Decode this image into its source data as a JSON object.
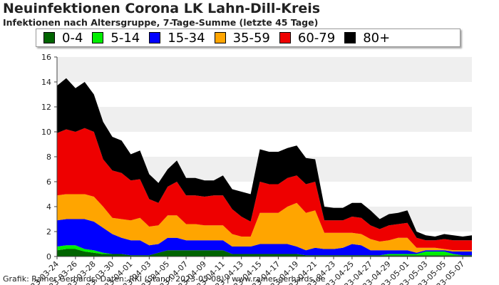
{
  "chart_data": {
    "type": "area",
    "title": "Neuinfektionen Corona LK Lahn-Dill-Kreis",
    "subtitle": "Infektionen nach Altersgruppe, 7-Tage-Summe (letzte 45 Tage)",
    "xlabel": "",
    "ylabel": "",
    "stacked": true,
    "ylim": [
      0,
      16
    ],
    "yticks": [
      "0",
      "2",
      "4",
      "6",
      "8",
      "10",
      "12",
      "14",
      "16"
    ],
    "grid": "alternating horizontal bands",
    "legend_position": "top",
    "x": [
      "2023-03-24",
      "2023-03-25",
      "2023-03-26",
      "2023-03-27",
      "2023-03-28",
      "2023-03-29",
      "2023-03-30",
      "2023-03-31",
      "2023-04-01",
      "2023-04-02",
      "2023-04-03",
      "2023-04-04",
      "2023-04-05",
      "2023-04-06",
      "2023-04-07",
      "2023-04-08",
      "2023-04-09",
      "2023-04-10",
      "2023-04-11",
      "2023-04-12",
      "2023-04-13",
      "2023-04-14",
      "2023-04-15",
      "2023-04-16",
      "2023-04-17",
      "2023-04-18",
      "2023-04-19",
      "2023-04-20",
      "2023-04-21",
      "2023-04-22",
      "2023-04-23",
      "2023-04-24",
      "2023-04-25",
      "2023-04-26",
      "2023-04-27",
      "2023-04-28",
      "2023-04-29",
      "2023-04-30",
      "2023-05-01",
      "2023-05-02",
      "2023-05-03",
      "2023-05-04",
      "2023-05-05",
      "2023-05-06",
      "2023-05-07",
      "2023-05-08"
    ],
    "x_tick_labels": [
      "2023-03-24",
      "2023-03-26",
      "2023-03-28",
      "2023-03-30",
      "2023-04-01",
      "2023-04-03",
      "2023-04-05",
      "2023-04-07",
      "2023-04-09",
      "2023-04-11",
      "2023-04-13",
      "2023-04-15",
      "2023-04-17",
      "2023-04-19",
      "2023-04-21",
      "2023-04-23",
      "2023-04-25",
      "2023-04-27",
      "2023-04-29",
      "2023-05-01",
      "2023-05-03",
      "2023-05-05",
      "2023-05-07"
    ],
    "series": [
      {
        "name": "0-4",
        "color": "#006400",
        "values": [
          0.5,
          0.6,
          0.6,
          0.4,
          0.3,
          0.2,
          0.2,
          0.2,
          0.1,
          0.1,
          0.1,
          0.3,
          0.5,
          0.5,
          0.5,
          0.5,
          0.5,
          0.5,
          0.5,
          0.2,
          0.2,
          0.2,
          0.2,
          0.2,
          0.2,
          0.2,
          0.2,
          0.1,
          0.1,
          0.1,
          0.1,
          0.1,
          0.1,
          0.1,
          0.1,
          0.1,
          0.1,
          0.1,
          0.1,
          0.1,
          0.1,
          0.1,
          0.1,
          0.1,
          0.1,
          0.1
        ]
      },
      {
        "name": "5-14",
        "color": "#00ee00",
        "values": [
          0.3,
          0.3,
          0.3,
          0.2,
          0.2,
          0.1,
          0,
          0,
          0,
          0,
          0,
          0,
          0,
          0,
          0,
          0,
          0,
          0,
          0,
          0,
          0,
          0,
          0,
          0,
          0,
          0,
          0,
          0,
          0,
          0,
          0,
          0,
          0,
          0,
          0,
          0,
          0.1,
          0.1,
          0.1,
          0.1,
          0.3,
          0.3,
          0.3,
          0.1,
          0,
          0
        ]
      },
      {
        "name": "15-34",
        "color": "#0000ff",
        "values": [
          2.1,
          2.1,
          2.1,
          2.4,
          2.3,
          2.0,
          1.6,
          1.3,
          1.2,
          1.2,
          0.8,
          0.7,
          1.0,
          1.0,
          0.8,
          0.8,
          0.8,
          0.8,
          0.8,
          0.6,
          0.6,
          0.6,
          0.8,
          0.8,
          0.8,
          0.8,
          0.6,
          0.4,
          0.6,
          0.5,
          0.5,
          0.6,
          0.9,
          0.8,
          0.4,
          0.4,
          0.3,
          0.3,
          0.3,
          0.1,
          0.1,
          0.1,
          0.1,
          0.2,
          0.3,
          0.3
        ]
      },
      {
        "name": "35-59",
        "color": "#ffa500",
        "values": [
          2.0,
          2.0,
          2.0,
          2.0,
          2.0,
          1.7,
          1.3,
          1.5,
          1.6,
          1.8,
          1.5,
          1.5,
          1.8,
          1.8,
          1.3,
          1.3,
          1.2,
          1.2,
          1.2,
          1.0,
          0.8,
          0.8,
          2.5,
          2.5,
          2.5,
          3.0,
          3.5,
          3.0,
          3.0,
          1.3,
          1.3,
          1.2,
          0.9,
          0.9,
          0.9,
          0.7,
          0.8,
          1.0,
          1.0,
          0.4,
          0.2,
          0.2,
          0.1,
          0.1,
          0.1,
          0.1
        ]
      },
      {
        "name": "60-79",
        "color": "#ee0000",
        "values": [
          5.0,
          5.2,
          5.0,
          5.3,
          5.2,
          3.8,
          3.8,
          3.7,
          3.2,
          3.1,
          2.2,
          1.8,
          2.3,
          2.7,
          2.3,
          2.3,
          2.3,
          2.4,
          2.4,
          2.0,
          1.6,
          1.2,
          2.5,
          2.3,
          2.3,
          2.3,
          2.2,
          2.3,
          2.3,
          1.0,
          1.0,
          1.0,
          1.3,
          1.3,
          1.1,
          1.0,
          1.2,
          1.1,
          1.2,
          0.8,
          0.6,
          0.6,
          0.8,
          0.8,
          0.8,
          0.8
        ]
      },
      {
        "name": "80+",
        "color": "#000000",
        "values": [
          3.8,
          4.1,
          3.5,
          3.7,
          3.0,
          3.0,
          2.7,
          2.6,
          2.1,
          2.3,
          2.0,
          1.6,
          1.4,
          1.7,
          1.4,
          1.4,
          1.3,
          1.2,
          1.6,
          1.6,
          2.0,
          2.2,
          2.6,
          2.6,
          2.6,
          2.4,
          2.4,
          2.1,
          1.8,
          1.1,
          1.0,
          1.0,
          1.1,
          1.2,
          1.2,
          0.8,
          0.9,
          0.9,
          1.0,
          0.5,
          0.4,
          0.3,
          0.4,
          0.4,
          0.3,
          0.4
        ]
      }
    ]
  },
  "footer": "Grafik: Rainer Gerhards, Daten: RKI (Stand: 2023-05-08) | www.rainer-gerhards.de"
}
